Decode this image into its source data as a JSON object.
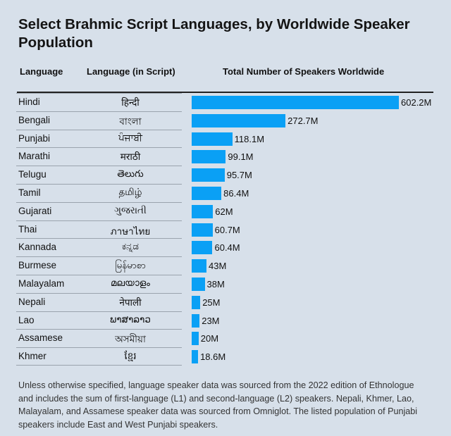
{
  "chart_data": {
    "type": "bar",
    "title": "Select Brahmic Script Languages, by Worldwide Speaker Population",
    "columns": [
      "Language",
      "Language (in Script)",
      "Total Number of Speakers Worldwide"
    ],
    "categories": [
      "Hindi",
      "Bengali",
      "Punjabi",
      "Marathi",
      "Telugu",
      "Tamil",
      "Gujarati",
      "Thai",
      "Kannada",
      "Burmese",
      "Malayalam",
      "Nepali",
      "Lao",
      "Assamese",
      "Khmer"
    ],
    "scripts": [
      "हिन्दी",
      "বাংলা",
      "ਪੰਜਾਬੀ",
      "मराठी",
      "తెలుగు",
      "தமிழ்",
      "ગુજરાતી",
      "ภาษาไทย",
      "ಕನ್ನಡ",
      "မြန်မာစာ",
      "മലയാളം",
      "नेपाली",
      "ພາສາລາວ",
      "অসমীয়া",
      "ខ្មែរ"
    ],
    "values": [
      602.2,
      272.7,
      118.1,
      99.1,
      95.7,
      86.4,
      62,
      60.7,
      60.4,
      43,
      38,
      25,
      23,
      20,
      18.6
    ],
    "labels": [
      "602.2M",
      "272.7M",
      "118.1M",
      "99.1M",
      "95.7M",
      "86.4M",
      "62M",
      "60.7M",
      "60.4M",
      "43M",
      "38M",
      "25M",
      "23M",
      "20M",
      "18.6M"
    ],
    "unit": "millions of speakers",
    "bar_color": "#0aa0f5",
    "note": "Unless otherwise specified, language speaker data was sourced from the 2022 edition of Ethnologue and includes the sum of first-language (L1) and second-language (L2) speakers. Nepali, Khmer, Lao, Malayalam, and Assamese speaker data was sourced from Omniglot. The listed population of Punjabi speakers include East and West Punjabi speakers."
  }
}
